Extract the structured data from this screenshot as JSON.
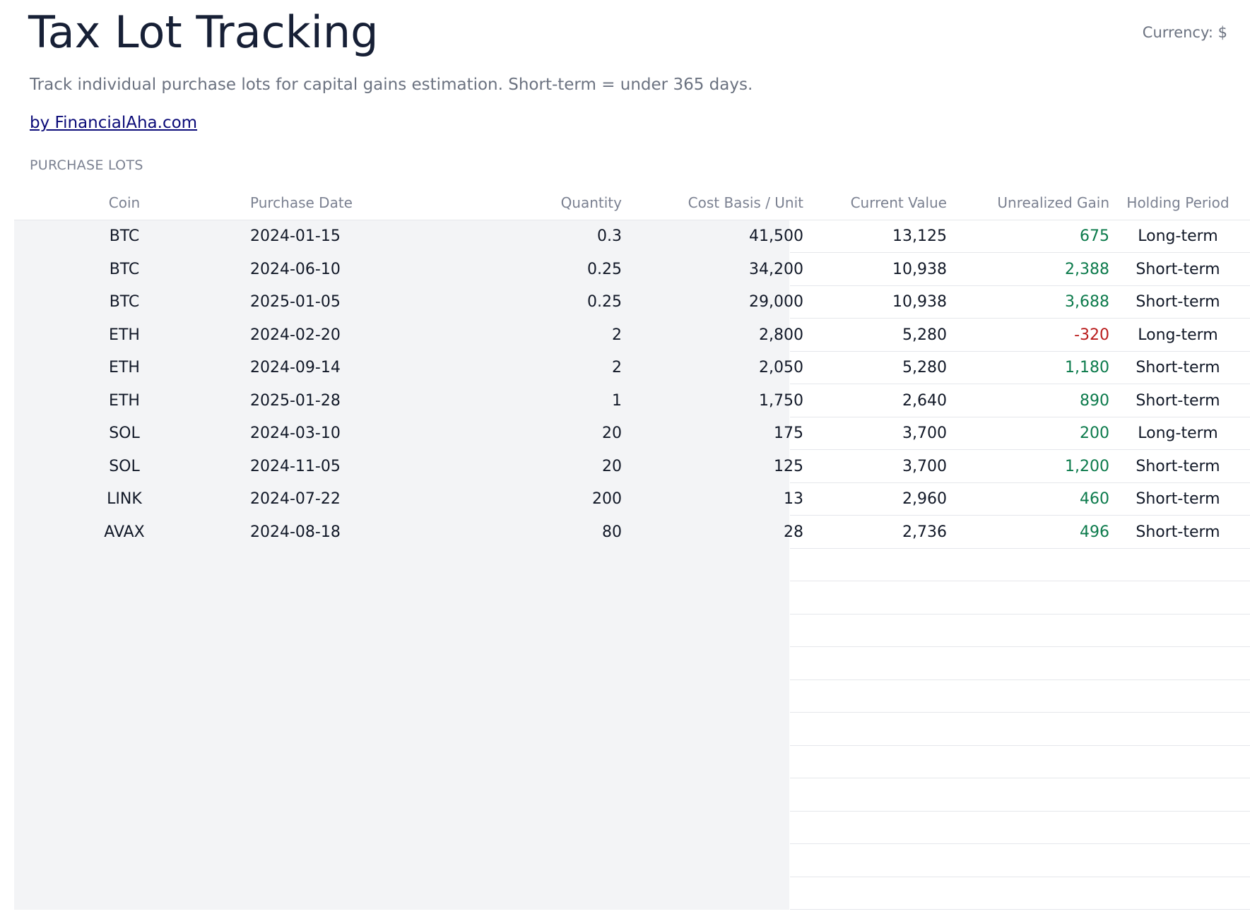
{
  "header": {
    "title": "Tax Lot Tracking",
    "currency": "Currency: $",
    "subtitle": "Track individual purchase lots for capital gains estimation. Short-term = under 365 days.",
    "byline": "by FinancialAha.com"
  },
  "section_label": "PURCHASE LOTS",
  "table": {
    "columns": {
      "coin": "Coin",
      "date": "Purchase Date",
      "qty": "Quantity",
      "cost": "Cost Basis / Unit",
      "value": "Current Value",
      "gain": "Unrealized Gain",
      "period": "Holding Period"
    },
    "rows": [
      {
        "coin": "BTC",
        "date": "2024-01-15",
        "qty": "0.3",
        "cost": "41,500",
        "value": "13,125",
        "gain": "675",
        "gain_sign": "positive",
        "period": "Long-term"
      },
      {
        "coin": "BTC",
        "date": "2024-06-10",
        "qty": "0.25",
        "cost": "34,200",
        "value": "10,938",
        "gain": "2,388",
        "gain_sign": "positive",
        "period": "Short-term"
      },
      {
        "coin": "BTC",
        "date": "2025-01-05",
        "qty": "0.25",
        "cost": "29,000",
        "value": "10,938",
        "gain": "3,688",
        "gain_sign": "positive",
        "period": "Short-term"
      },
      {
        "coin": "ETH",
        "date": "2024-02-20",
        "qty": "2",
        "cost": "2,800",
        "value": "5,280",
        "gain": "-320",
        "gain_sign": "negative",
        "period": "Long-term"
      },
      {
        "coin": "ETH",
        "date": "2024-09-14",
        "qty": "2",
        "cost": "2,050",
        "value": "5,280",
        "gain": "1,180",
        "gain_sign": "positive",
        "period": "Short-term"
      },
      {
        "coin": "ETH",
        "date": "2025-01-28",
        "qty": "1",
        "cost": "1,750",
        "value": "2,640",
        "gain": "890",
        "gain_sign": "positive",
        "period": "Short-term"
      },
      {
        "coin": "SOL",
        "date": "2024-03-10",
        "qty": "20",
        "cost": "175",
        "value": "3,700",
        "gain": "200",
        "gain_sign": "positive",
        "period": "Long-term"
      },
      {
        "coin": "SOL",
        "date": "2024-11-05",
        "qty": "20",
        "cost": "125",
        "value": "3,700",
        "gain": "1,200",
        "gain_sign": "positive",
        "period": "Short-term"
      },
      {
        "coin": "LINK",
        "date": "2024-07-22",
        "qty": "200",
        "cost": "13",
        "value": "2,960",
        "gain": "460",
        "gain_sign": "positive",
        "period": "Short-term"
      },
      {
        "coin": "AVAX",
        "date": "2024-08-18",
        "qty": "80",
        "cost": "28",
        "value": "2,736",
        "gain": "496",
        "gain_sign": "positive",
        "period": "Short-term"
      },
      {
        "coin": "",
        "date": "",
        "qty": "",
        "cost": "",
        "value": "",
        "gain": "",
        "gain_sign": "",
        "period": ""
      },
      {
        "coin": "",
        "date": "",
        "qty": "",
        "cost": "",
        "value": "",
        "gain": "",
        "gain_sign": "",
        "period": ""
      },
      {
        "coin": "",
        "date": "",
        "qty": "",
        "cost": "",
        "value": "",
        "gain": "",
        "gain_sign": "",
        "period": ""
      },
      {
        "coin": "",
        "date": "",
        "qty": "",
        "cost": "",
        "value": "",
        "gain": "",
        "gain_sign": "",
        "period": ""
      },
      {
        "coin": "",
        "date": "",
        "qty": "",
        "cost": "",
        "value": "",
        "gain": "",
        "gain_sign": "",
        "period": ""
      },
      {
        "coin": "",
        "date": "",
        "qty": "",
        "cost": "",
        "value": "",
        "gain": "",
        "gain_sign": "",
        "period": ""
      },
      {
        "coin": "",
        "date": "",
        "qty": "",
        "cost": "",
        "value": "",
        "gain": "",
        "gain_sign": "",
        "period": ""
      },
      {
        "coin": "",
        "date": "",
        "qty": "",
        "cost": "",
        "value": "",
        "gain": "",
        "gain_sign": "",
        "period": ""
      },
      {
        "coin": "",
        "date": "",
        "qty": "",
        "cost": "",
        "value": "",
        "gain": "",
        "gain_sign": "",
        "period": ""
      },
      {
        "coin": "",
        "date": "",
        "qty": "",
        "cost": "",
        "value": "",
        "gain": "",
        "gain_sign": "",
        "period": ""
      },
      {
        "coin": "",
        "date": "",
        "qty": "",
        "cost": "",
        "value": "",
        "gain": "",
        "gain_sign": "",
        "period": ""
      }
    ]
  },
  "colors": {
    "title": "#172036",
    "muted": "#6b7280",
    "link": "#0a0a78",
    "gain_positive": "#0b7a4b",
    "gain_negative": "#b91c1c",
    "input_bg": "#f3f4f6"
  }
}
